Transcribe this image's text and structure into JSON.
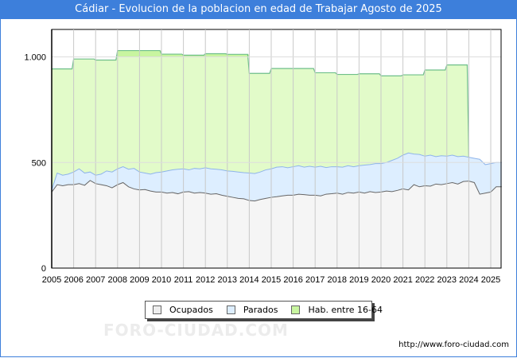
{
  "chart_data": {
    "type": "area",
    "title": "Cádiar - Evolucion de la poblacion en edad de Trabajar Agosto de 2025",
    "xlabel": "",
    "ylabel": "",
    "xlim": [
      2005,
      2025.5
    ],
    "ylim": [
      0,
      1130
    ],
    "x_ticks": [
      "2005",
      "2006",
      "2007",
      "2008",
      "2009",
      "2010",
      "2011",
      "2012",
      "2013",
      "2014",
      "2015",
      "2016",
      "2017",
      "2018",
      "2019",
      "2020",
      "2021",
      "2022",
      "2023",
      "2024",
      "2025"
    ],
    "y_ticks": [
      {
        "v": 0,
        "label": "0"
      },
      {
        "v": 500,
        "label": "500"
      },
      {
        "v": 1000,
        "label": "1.000"
      }
    ],
    "grid": true,
    "legend_placement": "bottom-center",
    "x_start": 2005,
    "x_step": 0.25,
    "series": [
      {
        "name": "Ocupados",
        "color": "#f5f5f5",
        "line": "#666666",
        "values": [
          360,
          395,
          390,
          395,
          395,
          400,
          392,
          415,
          400,
          395,
          390,
          380,
          395,
          405,
          385,
          375,
          370,
          372,
          365,
          360,
          360,
          355,
          358,
          352,
          360,
          362,
          355,
          358,
          355,
          350,
          352,
          345,
          340,
          335,
          330,
          328,
          320,
          318,
          325,
          330,
          335,
          338,
          342,
          345,
          345,
          350,
          348,
          345,
          345,
          342,
          350,
          352,
          355,
          350,
          358,
          355,
          360,
          355,
          362,
          358,
          360,
          365,
          362,
          368,
          375,
          370,
          395,
          385,
          390,
          388,
          398,
          395,
          400,
          405,
          398,
          410,
          412,
          405,
          350,
          355,
          360,
          385,
          385
        ]
      },
      {
        "name": "Parados",
        "color": "#ddeeff",
        "line": "#8fb4ea",
        "stacked_top_values": [
          370,
          450,
          440,
          445,
          455,
          470,
          450,
          455,
          440,
          445,
          460,
          455,
          470,
          480,
          468,
          472,
          455,
          450,
          445,
          452,
          455,
          460,
          465,
          468,
          470,
          465,
          472,
          470,
          475,
          470,
          468,
          465,
          460,
          458,
          455,
          452,
          450,
          448,
          455,
          465,
          470,
          478,
          480,
          475,
          480,
          485,
          478,
          482,
          478,
          482,
          476,
          480,
          480,
          478,
          485,
          480,
          485,
          488,
          490,
          495,
          495,
          500,
          510,
          520,
          535,
          545,
          540,
          538,
          530,
          535,
          528,
          532,
          530,
          535,
          528,
          530,
          525,
          520,
          515,
          490,
          495,
          500,
          500
        ]
      },
      {
        "name": "Hab. entre 16-64",
        "color": "#e2fbc9",
        "line": "#6fbf8a",
        "years": [
          2005,
          2006,
          2007,
          2008,
          2009,
          2010,
          2011,
          2012,
          2013,
          2014,
          2015,
          2016,
          2017,
          2018,
          2019,
          2020,
          2021,
          2022,
          2023
        ],
        "values": [
          943,
          990,
          985,
          1030,
          1030,
          1013,
          1008,
          1015,
          1012,
          922,
          945,
          945,
          925,
          917,
          920,
          910,
          915,
          938,
          962
        ]
      }
    ]
  },
  "legend": [
    "Ocupados",
    "Parados",
    "Hab. entre 16-64"
  ],
  "footer_url": "http://www.foro-ciudad.com",
  "watermark": "FORO-CIUDAD.COM"
}
